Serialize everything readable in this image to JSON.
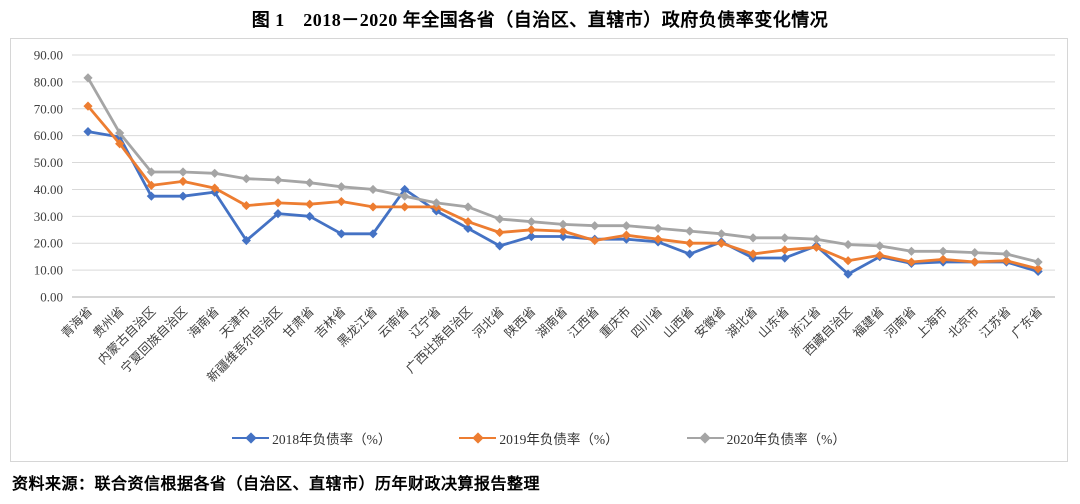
{
  "page": {
    "title": "图 1　2018－2020 年全国各省（自治区、直辖市）政府负债率变化情况",
    "source_note": "资料来源：联合资信根据各省（自治区、直辖市）历年财政决算报告整理"
  },
  "chart_data": {
    "type": "line",
    "title": "图 1　2018－2020 年全国各省（自治区、直辖市）政府负债率变化情况",
    "marker": "diamond",
    "grid": "horizontal",
    "legend_position": "bottom",
    "ylim": [
      0,
      90
    ],
    "yticks": [
      {
        "value": 0,
        "label": "0.00"
      },
      {
        "value": 10,
        "label": "10.00"
      },
      {
        "value": 20,
        "label": "20.00"
      },
      {
        "value": 30,
        "label": "30.00"
      },
      {
        "value": 40,
        "label": "40.00"
      },
      {
        "value": 50,
        "label": "50.00"
      },
      {
        "value": 60,
        "label": "60.00"
      },
      {
        "value": 70,
        "label": "70.00"
      },
      {
        "value": 80,
        "label": "80.00"
      },
      {
        "value": 90,
        "label": "90.00"
      }
    ],
    "categories": [
      "青海省",
      "贵州省",
      "内蒙古自治区",
      "宁夏回族自治区",
      "海南省",
      "天津市",
      "新疆维吾尔自治区",
      "甘肃省",
      "吉林省",
      "黑龙江省",
      "云南省",
      "辽宁省",
      "广西壮族自治区",
      "河北省",
      "陕西省",
      "湖南省",
      "江西省",
      "重庆市",
      "四川省",
      "山西省",
      "安徽省",
      "湖北省",
      "山东省",
      "浙江省",
      "西藏自治区",
      "福建省",
      "河南省",
      "上海市",
      "北京市",
      "江苏省",
      "广东省"
    ],
    "series": [
      {
        "name": "2018年负债率（%）",
        "color": "#4472C4",
        "values": [
          61.5,
          59.5,
          37.5,
          37.5,
          39.0,
          21.0,
          31.0,
          30.0,
          23.5,
          23.5,
          40.0,
          32.0,
          25.5,
          19.0,
          22.5,
          22.5,
          21.5,
          21.5,
          20.5,
          16.0,
          20.5,
          14.5,
          14.5,
          19.0,
          8.5,
          15.0,
          12.5,
          13.0,
          13.0,
          13.0,
          9.5
        ]
      },
      {
        "name": "2019年负债率（%）",
        "color": "#ED7D31",
        "values": [
          71.0,
          57.0,
          41.5,
          43.0,
          40.5,
          34.0,
          35.0,
          34.5,
          35.5,
          33.5,
          33.5,
          33.5,
          28.0,
          24.0,
          25.0,
          24.5,
          21.0,
          23.0,
          21.5,
          20.0,
          20.0,
          16.0,
          17.5,
          18.5,
          13.5,
          15.5,
          13.0,
          14.0,
          13.0,
          13.5,
          10.5
        ]
      },
      {
        "name": "2020年负债率（%）",
        "color": "#A5A5A5",
        "values": [
          81.5,
          61.0,
          46.5,
          46.5,
          46.0,
          44.0,
          43.5,
          42.5,
          41.0,
          40.0,
          37.5,
          35.0,
          33.5,
          29.0,
          28.0,
          27.0,
          26.5,
          26.5,
          25.5,
          24.5,
          23.5,
          22.0,
          22.0,
          21.5,
          19.5,
          19.0,
          17.0,
          17.0,
          16.5,
          16.0,
          13.0
        ]
      }
    ]
  }
}
